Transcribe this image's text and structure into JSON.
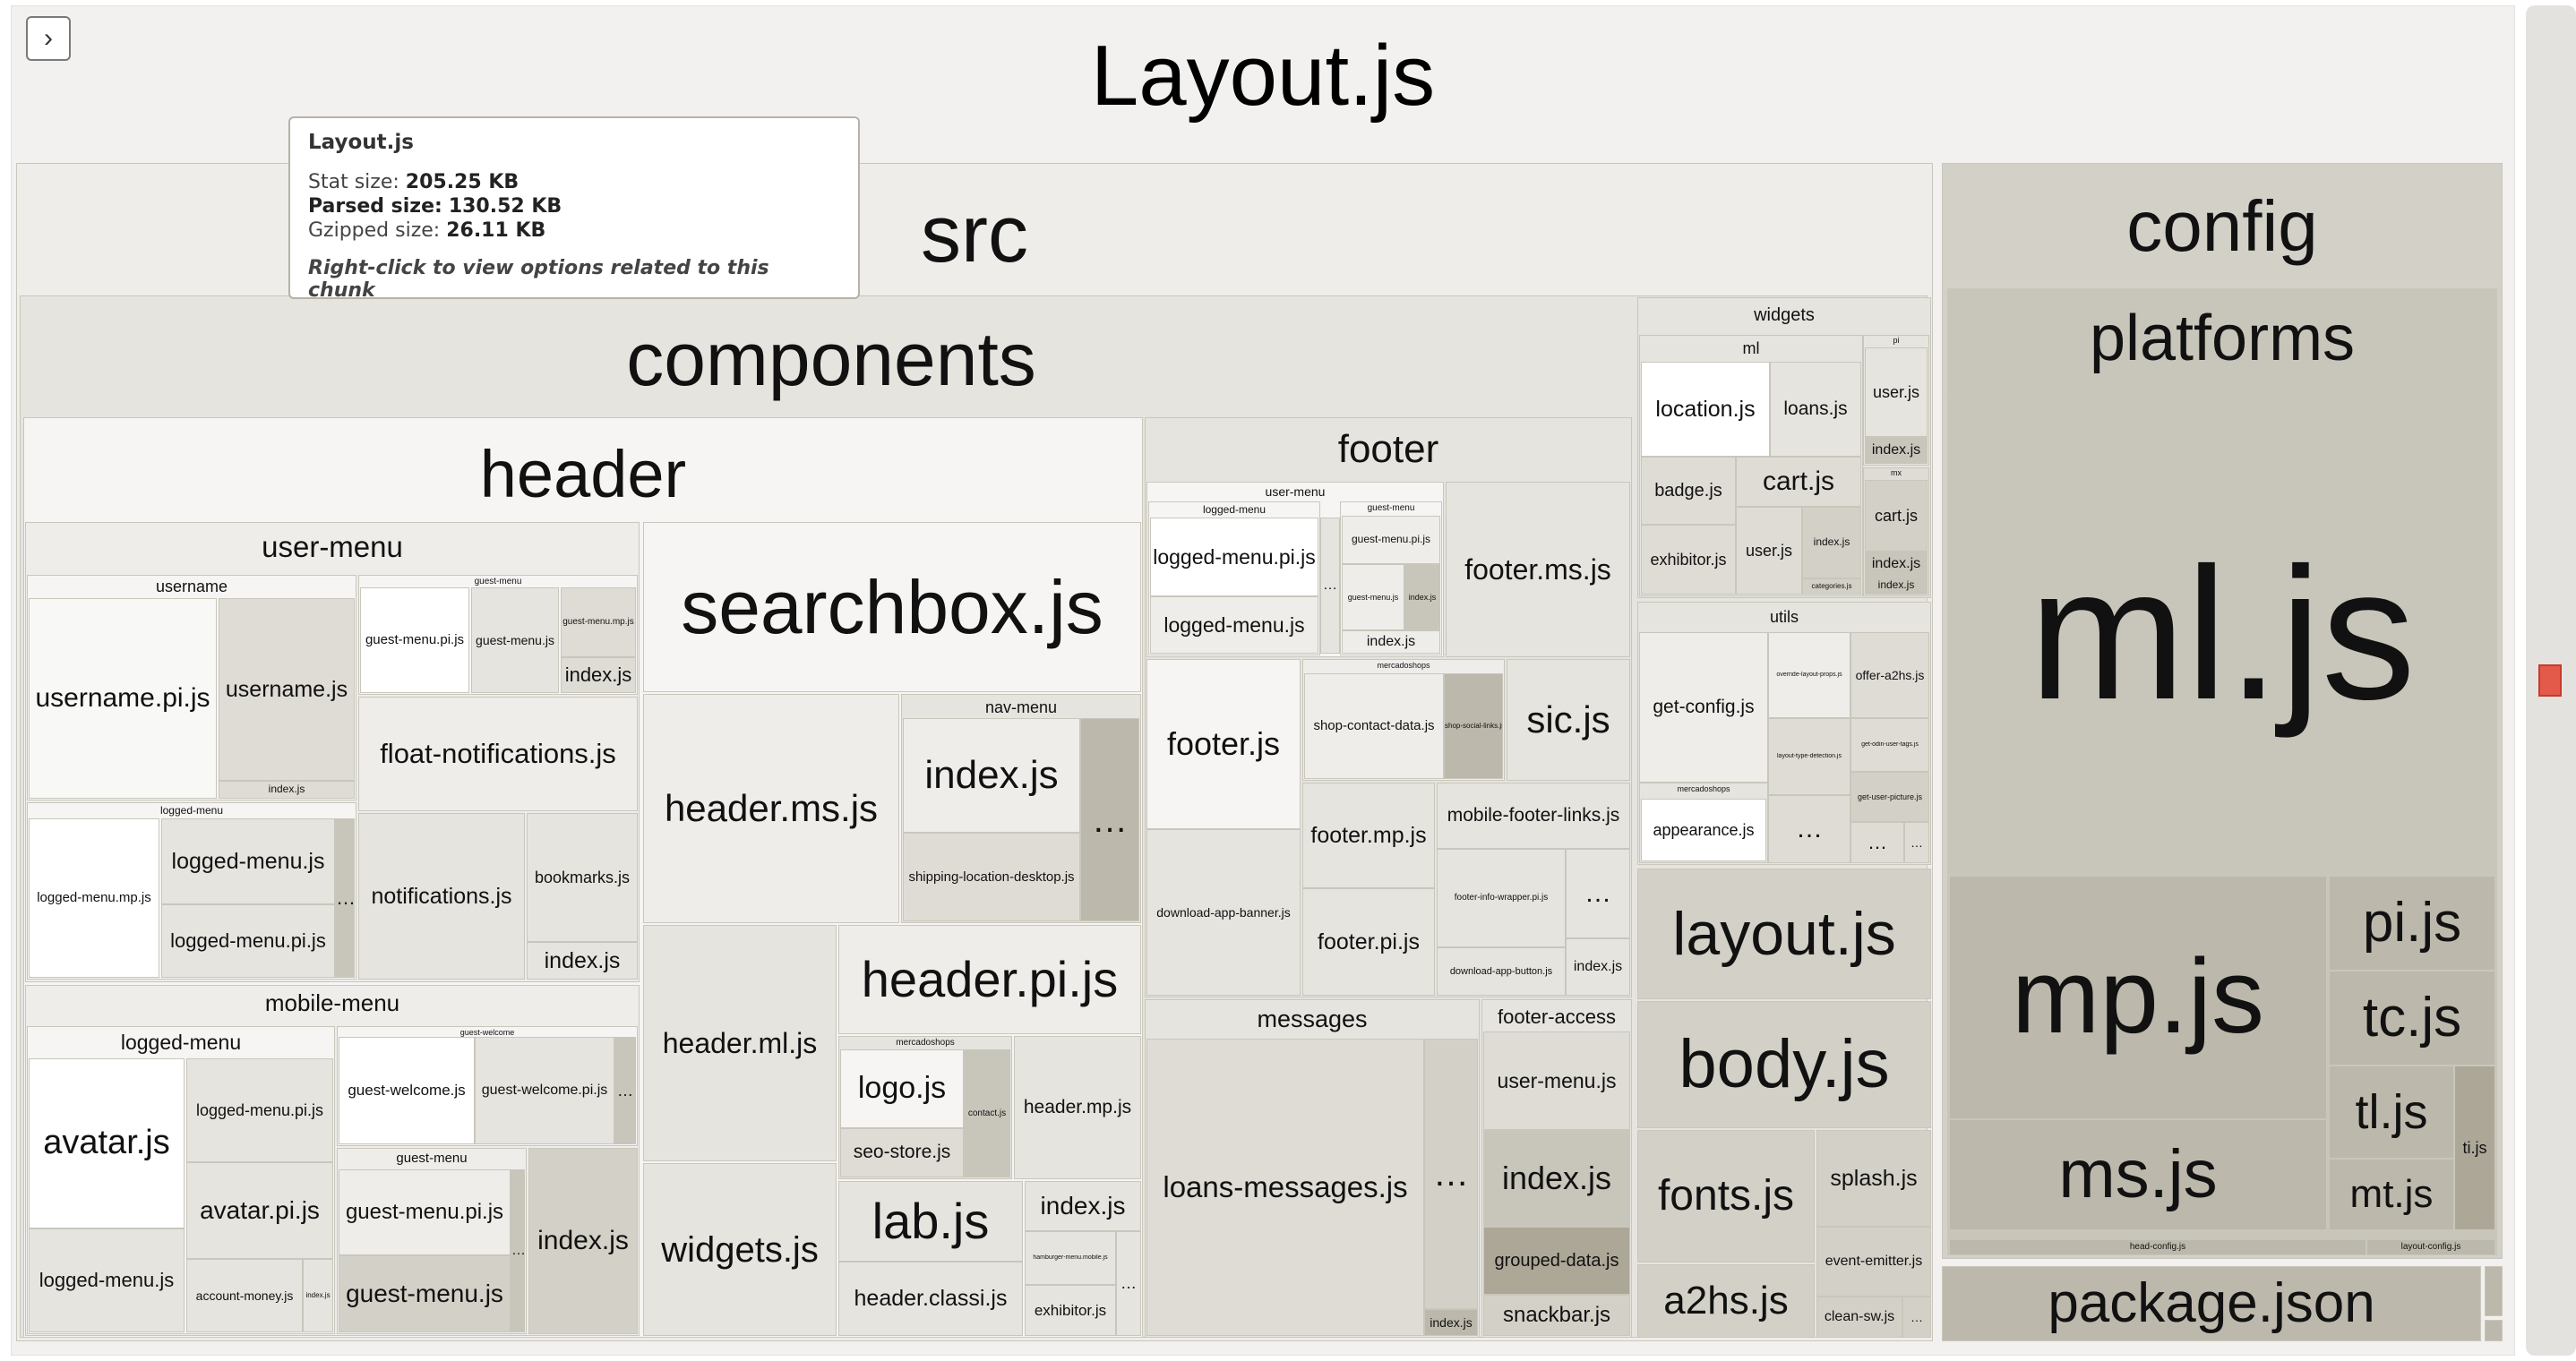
{
  "window": {
    "title": "Layout.js"
  },
  "toggle": {
    "icon": "chevron-right-icon",
    "glyph": "›"
  },
  "tooltip": {
    "title": "Layout.js",
    "stat_label": "Stat size:",
    "stat_value": "205.25 KB",
    "parsed_label": "Parsed size:",
    "parsed_value": "130.52 KB",
    "gzip_label": "Gzipped size:",
    "gzip_value": "26.11 KB",
    "hint": "Right-click to view options related to this chunk"
  },
  "tree": {
    "src": "src",
    "components": "components",
    "header": {
      "label": "header",
      "user_menu": "user-menu",
      "username": "username",
      "username_pi": "username.pi.js",
      "username_js": "username.js",
      "username_index": "index.js",
      "guest_menu": "guest-menu",
      "guest_menu_pi": "guest-menu.pi.js",
      "guest_menu_js": "guest-menu.js",
      "guest_menu_mp": "guest-menu.mp.js",
      "guest_menu_index": "index.js",
      "float_notifications": "float-notifications.js",
      "logged_menu": "logged-menu",
      "logged_menu_mp": "logged-menu.mp.js",
      "logged_menu_js": "logged-menu.js",
      "logged_menu_pi": "logged-menu.pi.js",
      "notifications": "notifications.js",
      "bookmarks": "bookmarks.js",
      "notif_index": "index.js",
      "mobile_menu": "mobile-menu",
      "mm_logged_menu": "logged-menu",
      "avatar": "avatar.js",
      "mm_logged_menu_pi": "logged-menu.pi.js",
      "avatar_pi": "avatar.pi.js",
      "mm_logged_menu_js": "logged-menu.js",
      "account_money": "account-money.js",
      "mm_index_small": "index.js",
      "guest_welcome": "guest-welcome",
      "guest_welcome_js": "guest-welcome.js",
      "guest_welcome_pi": "guest-welcome.pi.js",
      "mm_guest_menu": "guest-menu",
      "mm_guest_menu_pi": "guest-menu.pi.js",
      "mm_guest_menu_js": "guest-menu.js",
      "mm_index": "index.js",
      "searchbox": "searchbox.js",
      "header_ms": "header.ms.js",
      "nav_menu": "nav-menu",
      "nav_index": "index.js",
      "shipping_location": "shipping-location-desktop.js",
      "header_ml": "header.ml.js",
      "header_pi": "header.pi.js",
      "mercadoshops": "mercadoshops",
      "logo": "logo.js",
      "contact": "contact.js",
      "seo_store": "seo-store.js",
      "header_mp": "header.mp.js",
      "widgets": "widgets.js",
      "lab": "lab.js",
      "header_classi": "header.classi.js",
      "index_js": "index.js",
      "hamburger": "hamburger-menu.mobile.js",
      "exhibitor": "exhibitor.js"
    },
    "footer": {
      "label": "footer",
      "user_menu": "user-menu",
      "logged_menu": "logged-menu",
      "logged_menu_pi": "logged-menu.pi.js",
      "logged_menu_js": "logged-menu.js",
      "guest_menu": "guest-menu",
      "guest_menu_pi": "guest-menu.pi.js",
      "guest_menu_js": "guest-menu.js",
      "guest_menu_index": "index.js",
      "um_index": "index.js",
      "footer_ms": "footer.ms.js",
      "footer_js": "footer.js",
      "mercadoshops": "mercadoshops",
      "shop_contact": "shop-contact-data.js",
      "shop_social": "shop-social-links.js",
      "sic": "sic.js",
      "download_banner": "download-app-banner.js",
      "footer_mp": "footer.mp.js",
      "footer_pi": "footer.pi.js",
      "mobile_links": "mobile-footer-links.js",
      "info_wrapper": "footer-info-wrapper.pi.js",
      "download_button": "download-app-button.js",
      "index_js": "index.js"
    },
    "messages": {
      "label": "messages",
      "loans": "loans-messages.js",
      "index_js": "index.js"
    },
    "footer_access": {
      "label": "footer-access",
      "user_menu": "user-menu.js",
      "index_js": "index.js",
      "grouped": "grouped-data.js",
      "snackbar": "snackbar.js"
    },
    "widgets": {
      "label": "widgets",
      "ml": "ml",
      "location": "location.js",
      "loans": "loans.js",
      "pi": "pi",
      "pi_user": "user.js",
      "pi_index": "index.js",
      "badge": "badge.js",
      "cart": "cart.js",
      "mx": "mx",
      "mx_cart": "cart.js",
      "mx_index": "index.js",
      "exhibitor": "exhibitor.js",
      "user": "user.js",
      "index_js": "index.js",
      "categories": "categories.js",
      "index2": "index.js"
    },
    "utils": {
      "label": "utils",
      "get_config": "get-config.js",
      "override": "override-layout-props.js",
      "offer_a2hs": "offer-a2hs.js",
      "layout_type": "layout-type-detection.js",
      "get_odin": "get-odin-user-tags.js",
      "get_user_picture": "get-user-picture.js",
      "mercadoshops": "mercadoshops",
      "appearance": "appearance.js"
    },
    "layout": "layout.js",
    "body": "body.js",
    "fonts": "fonts.js",
    "splash": "splash.js",
    "a2hs": "a2hs.js",
    "event_emitter": "event-emitter.js",
    "clean_sw": "clean-sw.js",
    "config": {
      "label": "config",
      "platforms": "platforms",
      "ml": "ml.js",
      "mp": "mp.js",
      "pi": "pi.js",
      "tc": "tc.js",
      "tl": "tl.js",
      "ti": "ti.js",
      "ms": "ms.js",
      "mt": "mt.js",
      "head_config": "head-config.js",
      "layout_config": "layout-config.js"
    },
    "package": "package.json",
    "ellipsis": "…"
  }
}
